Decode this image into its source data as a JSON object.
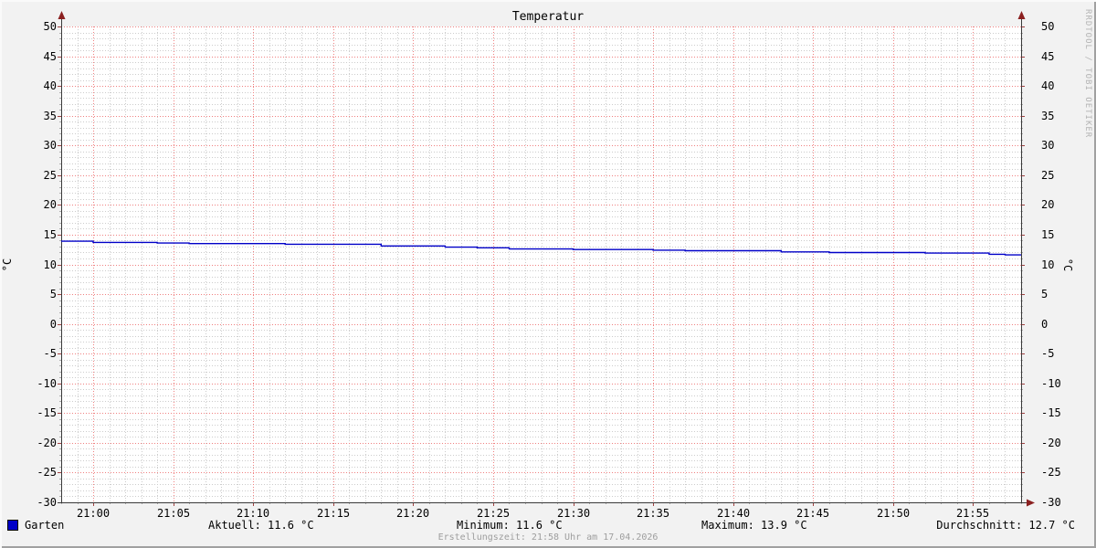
{
  "title": "Temperatur",
  "watermark": "RRDTOOL / TOBI OETIKER",
  "footer": {
    "created": "Erstellungszeit: 21:58 Uhr am 17.04.2026"
  },
  "legend": {
    "series_label": "Garten",
    "series_color": "#0000c8",
    "stats": [
      {
        "name": "current",
        "label": "Aktuell: 11.6 °C"
      },
      {
        "name": "minimum",
        "label": "Minimum: 11.6 °C"
      },
      {
        "name": "maximum",
        "label": "Maximum: 13.9 °C"
      },
      {
        "name": "average",
        "label": "Durchschnitt: 12.7 °C"
      }
    ]
  },
  "colors": {
    "background": "#f2f2f2",
    "plot_background": "#ffffff",
    "major_grid": "#f08080",
    "minor_grid": "#cccccc",
    "axis": "#3a3a3a",
    "arrow": "#8b2020",
    "major_tick": "#a04040",
    "minor_tick": "#aaaaaa",
    "line": "#0000c8",
    "muted_text": "#9e9e9e",
    "watermark_text": "#b3b3b3"
  },
  "chart_data": {
    "type": "line",
    "title": "Temperatur",
    "ylabel": "°C",
    "ylabel_right": "°C",
    "ylim": [
      -30,
      50
    ],
    "y_major_step": 5,
    "y_minor_step": 1,
    "y_tick_labels": [
      "50",
      "45",
      "40",
      "35",
      "30",
      "25",
      "20",
      "15",
      "10",
      "5",
      "0",
      "-5",
      "-10",
      "-15",
      "-20",
      "-25",
      "-30"
    ],
    "x_start": "20:58",
    "x_end": "21:58",
    "x_span_minutes": 60,
    "x_minor_step_minutes": 1,
    "x_ticks": [
      {
        "minute": 2,
        "label": "21:00"
      },
      {
        "minute": 7,
        "label": "21:05"
      },
      {
        "minute": 12,
        "label": "21:10"
      },
      {
        "minute": 17,
        "label": "21:15"
      },
      {
        "minute": 22,
        "label": "21:20"
      },
      {
        "minute": 27,
        "label": "21:25"
      },
      {
        "minute": 32,
        "label": "21:30"
      },
      {
        "minute": 37,
        "label": "21:35"
      },
      {
        "minute": 42,
        "label": "21:40"
      },
      {
        "minute": 47,
        "label": "21:45"
      },
      {
        "minute": 52,
        "label": "21:50"
      },
      {
        "minute": 57,
        "label": "21:55"
      }
    ],
    "grid": {
      "major": "dotted-red",
      "minor": "dotted-gray"
    },
    "legend_position": "bottom",
    "series": [
      {
        "name": "Garten",
        "color": "#0000c8",
        "interpolation": "step",
        "points": [
          [
            0,
            13.9
          ],
          [
            2,
            13.7
          ],
          [
            6,
            13.6
          ],
          [
            8,
            13.5
          ],
          [
            14,
            13.4
          ],
          [
            20,
            13.1
          ],
          [
            24,
            12.9
          ],
          [
            26,
            12.8
          ],
          [
            28,
            12.6
          ],
          [
            32,
            12.5
          ],
          [
            37,
            12.4
          ],
          [
            39,
            12.3
          ],
          [
            45,
            12.1
          ],
          [
            48,
            12.0
          ],
          [
            54,
            11.9
          ],
          [
            58,
            11.7
          ],
          [
            59,
            11.6
          ]
        ]
      }
    ],
    "stats": {
      "current": 11.6,
      "min": 11.6,
      "max": 13.9,
      "avg": 12.7,
      "unit": "°C"
    }
  }
}
